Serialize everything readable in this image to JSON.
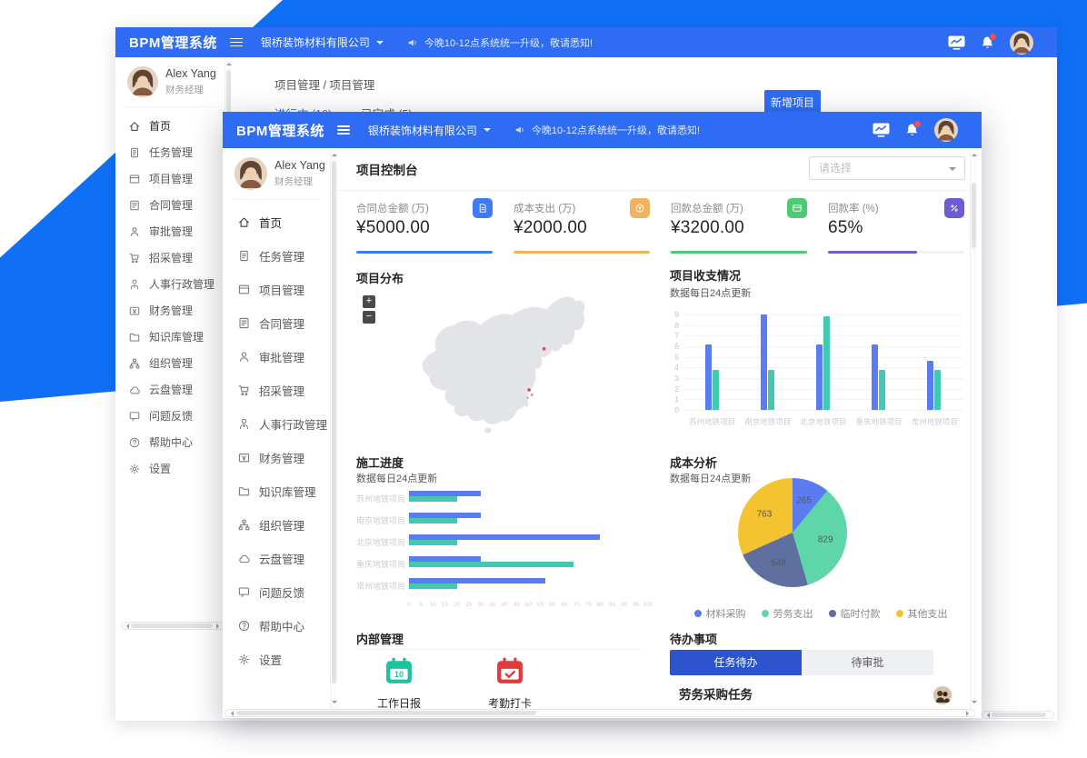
{
  "theme": {
    "header_blue": "#2e6cf3",
    "background_blue": "#0f70f6",
    "todo_tab_active_blue": "#2d54cd"
  },
  "app": {
    "brand": "BPM管理系统",
    "company": "银桥装饰材料有限公司",
    "notice": "今晚10-12点系统统一升级，敬请悉知!",
    "user": {
      "name": "Alex Yang",
      "role": "财务经理"
    },
    "header_icons": [
      {
        "name": "monitor-icon"
      },
      {
        "name": "bell-icon",
        "has_badge": true
      },
      {
        "name": "user-avatar"
      }
    ]
  },
  "menu": [
    {
      "key": "home",
      "icon": "home-icon",
      "label": "首页",
      "active": true
    },
    {
      "key": "tasks",
      "icon": "task-icon",
      "label": "任务管理"
    },
    {
      "key": "projects",
      "icon": "project-icon",
      "label": "项目管理"
    },
    {
      "key": "contracts",
      "icon": "contract-icon",
      "label": "合同管理"
    },
    {
      "key": "approvals",
      "icon": "approval-icon",
      "label": "审批管理"
    },
    {
      "key": "procurement",
      "icon": "procurement-icon",
      "label": "招采管理"
    },
    {
      "key": "hr-admin",
      "icon": "hr-icon",
      "label": "人事行政管理"
    },
    {
      "key": "finance",
      "icon": "finance-icon",
      "label": "财务管理"
    },
    {
      "key": "knowledge",
      "icon": "knowledge-icon",
      "label": "知识库管理"
    },
    {
      "key": "organization",
      "icon": "org-icon",
      "label": "组织管理"
    },
    {
      "key": "cloud-disk",
      "icon": "cloud-icon",
      "label": "云盘管理"
    },
    {
      "key": "feedback",
      "icon": "feedback-icon",
      "label": "问题反馈"
    },
    {
      "key": "help-center",
      "icon": "help-icon",
      "label": "帮助中心"
    },
    {
      "key": "settings",
      "icon": "settings-icon",
      "label": "设置"
    }
  ],
  "back_window": {
    "breadcrumb": "项目管理 / 项目管理",
    "tabs": [
      {
        "label": "进行中 (10)",
        "active": true
      },
      {
        "label": "已完成 (5)",
        "active": false
      }
    ],
    "new_project_button": "新增项目"
  },
  "front_window": {
    "page_title": "项目控制台",
    "filter_placeholder": "请选择",
    "metrics": [
      {
        "label": "合同总金额 (万)",
        "value": "¥5000.00",
        "badge_icon": "contract-badge-icon",
        "color": "#3e7bfa",
        "progress": 100
      },
      {
        "label": "成本支出 (万)",
        "value": "¥2000.00",
        "badge_icon": "expense-badge-icon",
        "color": "#f0b461",
        "progress": 100
      },
      {
        "label": "回款总金额 (万)",
        "value": "¥3200.00",
        "badge_icon": "payment-badge-icon",
        "color": "#4ccb74",
        "progress": 100
      },
      {
        "label": "回款率 (%)",
        "value": "65%",
        "badge_icon": "rate-badge-icon",
        "color": "#6c5dd3",
        "progress": 65
      }
    ],
    "sections": {
      "distribution": {
        "title": "项目分布",
        "map_markers": 2,
        "zoom_controls": [
          "+",
          "-"
        ]
      },
      "internal": {
        "title": "内部管理",
        "apps": [
          {
            "icon": "daily-report-icon",
            "label": "工作日报",
            "date_badge": "10"
          },
          {
            "icon": "attendance-icon",
            "label": "考勤打卡"
          }
        ]
      },
      "todo": {
        "title": "待办事项",
        "tabs": [
          {
            "label": "任务待办",
            "active": true
          },
          {
            "label": "待审批",
            "active": false
          }
        ],
        "items": [
          {
            "title": "劳务采购任务"
          }
        ]
      }
    }
  },
  "chart_data": [
    {
      "id": "income",
      "type": "bar",
      "title": "项目收支情况",
      "subtitle": "数据每日24点更新",
      "categories": [
        "苏州地铁项目",
        "南京地铁项目",
        "北京地铁项目",
        "重庆地铁项目",
        "常州地铁项目"
      ],
      "series": [
        {
          "color": "#5b7cf0",
          "values": [
            6.2,
            9,
            6.2,
            6.2,
            4.6
          ]
        },
        {
          "color": "#45c8b1",
          "values": [
            3.8,
            3.8,
            8.8,
            3.8,
            3.8
          ]
        }
      ],
      "ylim": [
        0,
        9
      ],
      "yticks": [
        0,
        1,
        2,
        3,
        4,
        5,
        6,
        7,
        8,
        9
      ],
      "grid": true,
      "legend": false
    },
    {
      "id": "progress",
      "type": "bar",
      "orientation": "horizontal",
      "title": "施工进度",
      "subtitle": "数据每日24点更新",
      "categories": [
        "苏州地铁项目",
        "南京地铁项目",
        "北京地铁项目",
        "重庆地铁项目",
        "常州地铁项目"
      ],
      "series": [
        {
          "color": "#5b7cf0",
          "values": [
            30,
            30,
            80,
            30,
            57
          ]
        },
        {
          "color": "#45c8b1",
          "values": [
            20,
            20,
            20,
            69,
            20
          ]
        }
      ],
      "xlim": [
        0,
        100
      ],
      "xtick_step": 5
    },
    {
      "id": "cost",
      "type": "pie",
      "title": "成本分析",
      "subtitle": "数据每日24点更新",
      "slices": [
        {
          "label": "材料采购",
          "value": 265,
          "color": "#5b7cf0"
        },
        {
          "label": "劳务支出",
          "value": 829,
          "color": "#5fd6a9"
        },
        {
          "label": "临时付款",
          "value": 548,
          "color": "#5f6f9f"
        },
        {
          "label": "其他支出",
          "value": 763,
          "color": "#f3c42f"
        }
      ],
      "legend_position": "bottom"
    }
  ]
}
